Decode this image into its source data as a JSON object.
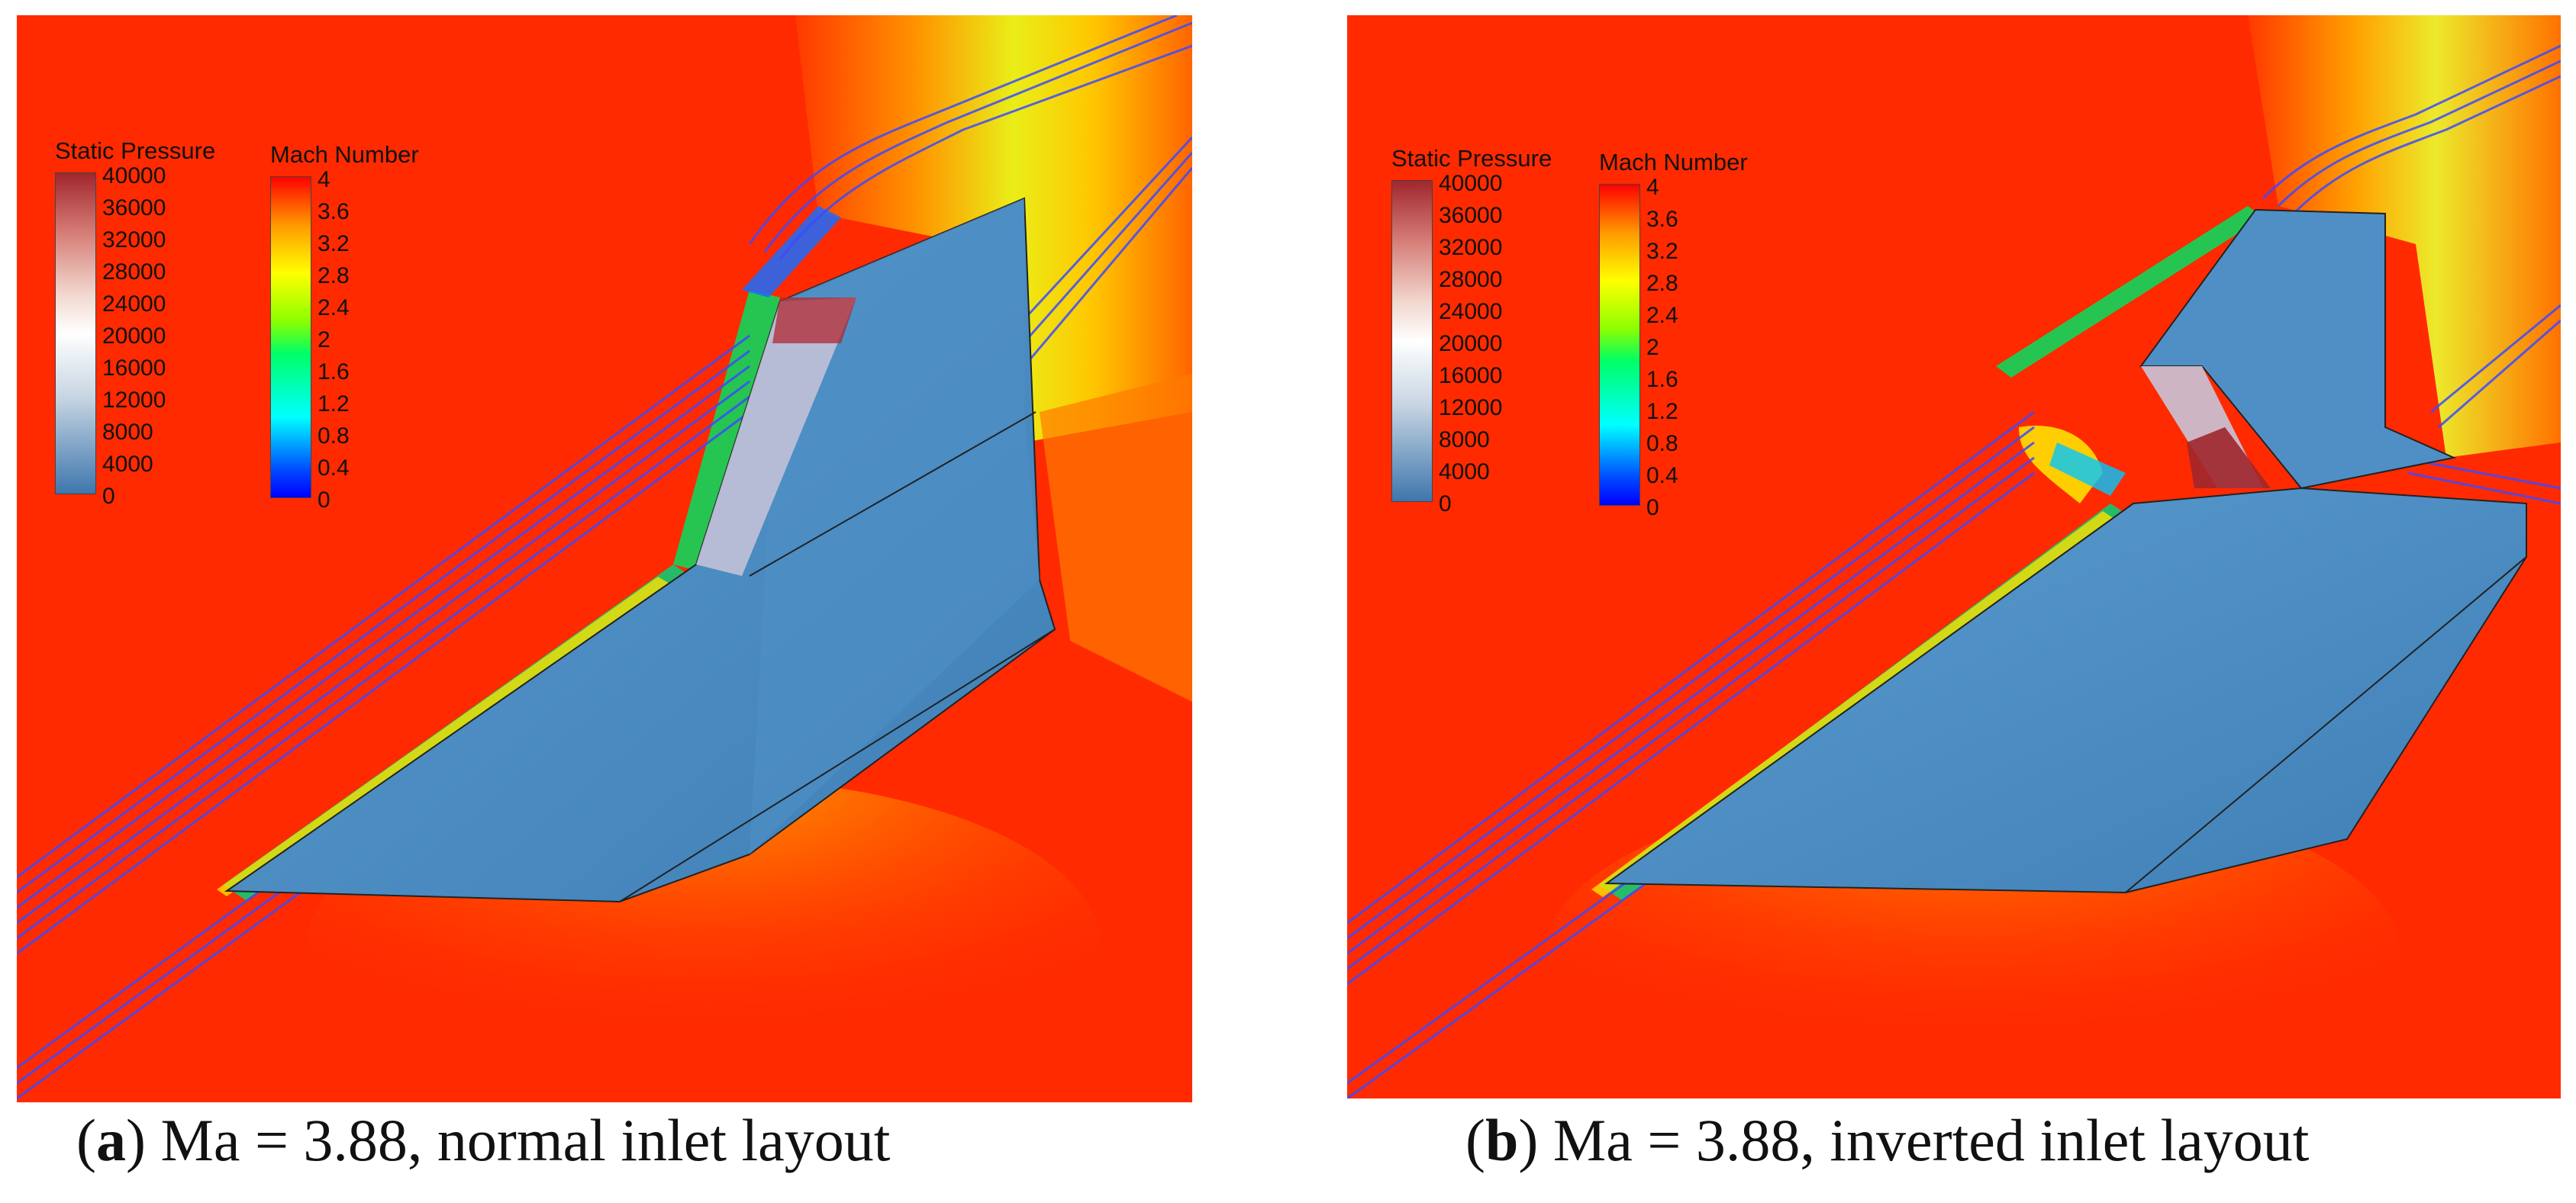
{
  "panels": [
    {
      "id": "a",
      "caption_letter": "a",
      "caption_text": "Ma = 3.88, normal inlet layout",
      "legend_pressure": {
        "title": "Static Pressure",
        "ticks": [
          "40000",
          "36000",
          "32000",
          "28000",
          "24000",
          "20000",
          "16000",
          "12000",
          "8000",
          "4000",
          "0"
        ]
      },
      "legend_mach": {
        "title": "Mach Number",
        "ticks": [
          "4",
          "3.6",
          "3.2",
          "2.8",
          "2.4",
          "2",
          "1.6",
          "1.2",
          "0.8",
          "0.4",
          "0"
        ]
      }
    },
    {
      "id": "b",
      "caption_letter": "b",
      "caption_text": "Ma = 3.88, inverted inlet layout",
      "legend_pressure": {
        "title": "Static Pressure",
        "ticks": [
          "40000",
          "36000",
          "32000",
          "28000",
          "24000",
          "20000",
          "16000",
          "12000",
          "8000",
          "4000",
          "0"
        ]
      },
      "legend_mach": {
        "title": "Mach Number",
        "ticks": [
          "4",
          "3.6",
          "3.2",
          "2.8",
          "2.4",
          "2",
          "1.6",
          "1.2",
          "0.8",
          "0.4",
          "0"
        ]
      }
    }
  ],
  "colors": {
    "background_flow": "#ff2a00",
    "body_surface": "#4a86bb",
    "streamline": "#3b4bff",
    "pressure_high": "#a0262d",
    "pressure_low": "#3e76ad",
    "mach_high": "#ff0000",
    "mach_low": "#0000ff"
  }
}
